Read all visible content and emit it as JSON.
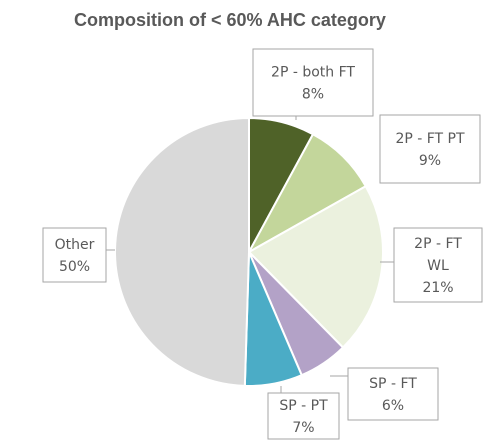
{
  "chart_data": {
    "type": "pie",
    "title": "Composition of < 60% AHC  category",
    "start_angle_deg": 0,
    "direction": "clockwise",
    "slices": [
      {
        "label": "2P - both FT",
        "value": 8,
        "display": "8%",
        "color": "#4f6228"
      },
      {
        "label": "2P - FT PT",
        "value": 9,
        "display": "9%",
        "color": "#c3d69b"
      },
      {
        "label": "2P - FT WL",
        "value": 21,
        "display": "21%",
        "color": "#ebf1de"
      },
      {
        "label": "SP - FT",
        "value": 6,
        "display": "6%",
        "color": "#b3a2c7"
      },
      {
        "label": "SP - PT",
        "value": 7,
        "display": "7%",
        "color": "#4bacc6"
      },
      {
        "label": "Other",
        "value": 50,
        "display": "50%",
        "color": "#d9d9d9"
      }
    ]
  }
}
